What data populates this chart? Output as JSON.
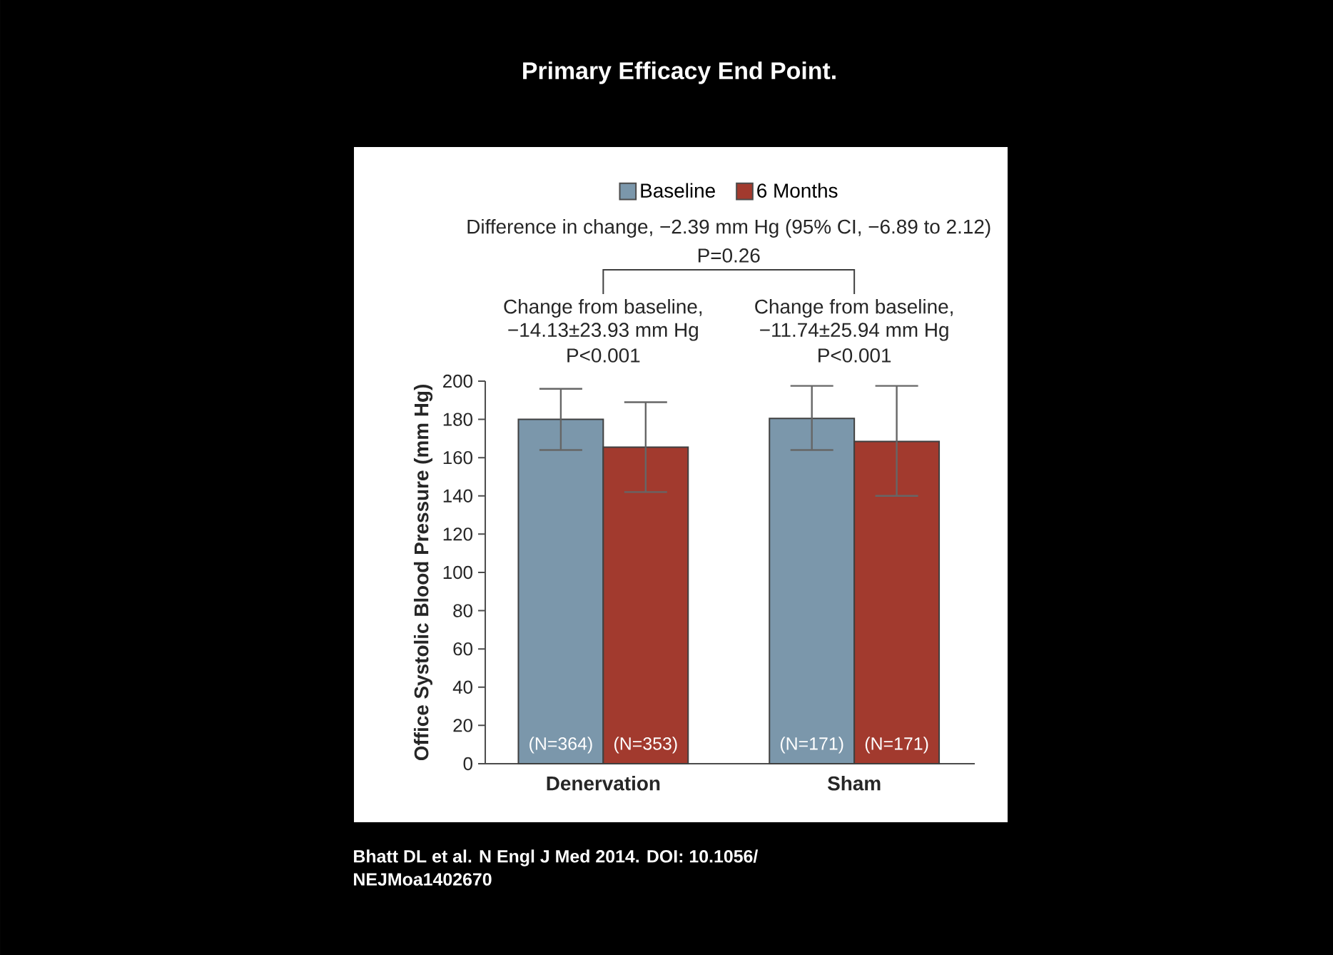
{
  "chart_data": {
    "type": "bar",
    "title": "Primary Efficacy End Point.",
    "ylabel": "Office Systolic Blood Pressure (mm Hg)",
    "categories": [
      "Denervation",
      "Sham"
    ],
    "series": [
      {
        "name": "Baseline",
        "color": "#7b97ab",
        "values": [
          180,
          180.5
        ],
        "errors": [
          [
            164,
            196
          ],
          [
            164,
            197.5
          ]
        ]
      },
      {
        "name": "6 Months",
        "color": "#a23a2e",
        "values": [
          165.5,
          168.5
        ],
        "errors": [
          [
            142,
            189
          ],
          [
            140,
            197.5
          ]
        ]
      }
    ],
    "ylim": [
      0,
      200
    ],
    "yticks": [
      0,
      20,
      40,
      60,
      80,
      100,
      120,
      140,
      160,
      180,
      200
    ],
    "legend": "top",
    "annotations": [
      "Difference in change, −2.39  mm Hg (95% CI, −6.89 to 2.12)",
      "P=0.26",
      "Change from baseline,",
      "−14.13±23.93 mm Hg",
      "P<0.001",
      "Change from baseline,",
      "−11.74±25.94 mm Hg",
      "P<0.001",
      "(N=364)",
      "(N=353)",
      "(N=171)",
      "(N=171)",
      "Bhatt DL et al. N Engl J Med 2014. DOI: 10.1056/",
      "NEJMoa1402670"
    ]
  }
}
